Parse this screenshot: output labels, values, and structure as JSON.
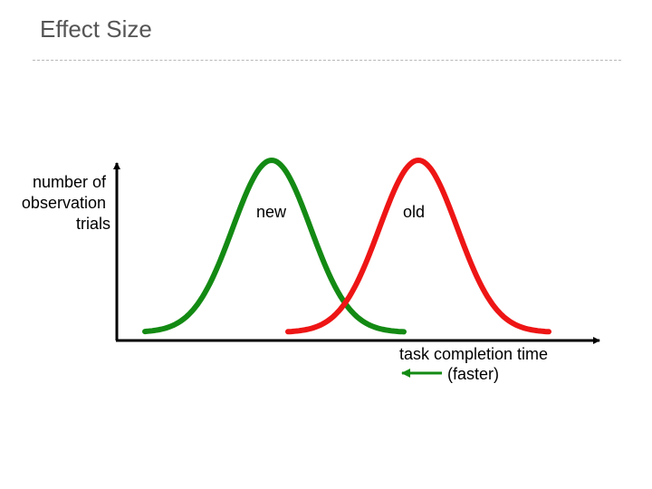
{
  "slide": {
    "title": "Effect Size"
  },
  "diagram": {
    "y_axis_label": [
      "number of",
      "observation",
      "trials"
    ],
    "x_axis_label": "task completion time",
    "direction_label": "(faster)",
    "curves": [
      {
        "name": "new",
        "color": "#138a13"
      },
      {
        "name": "old",
        "color": "#ee1515"
      }
    ],
    "arrow_color": "#138a13",
    "axis_color": "#000000"
  }
}
